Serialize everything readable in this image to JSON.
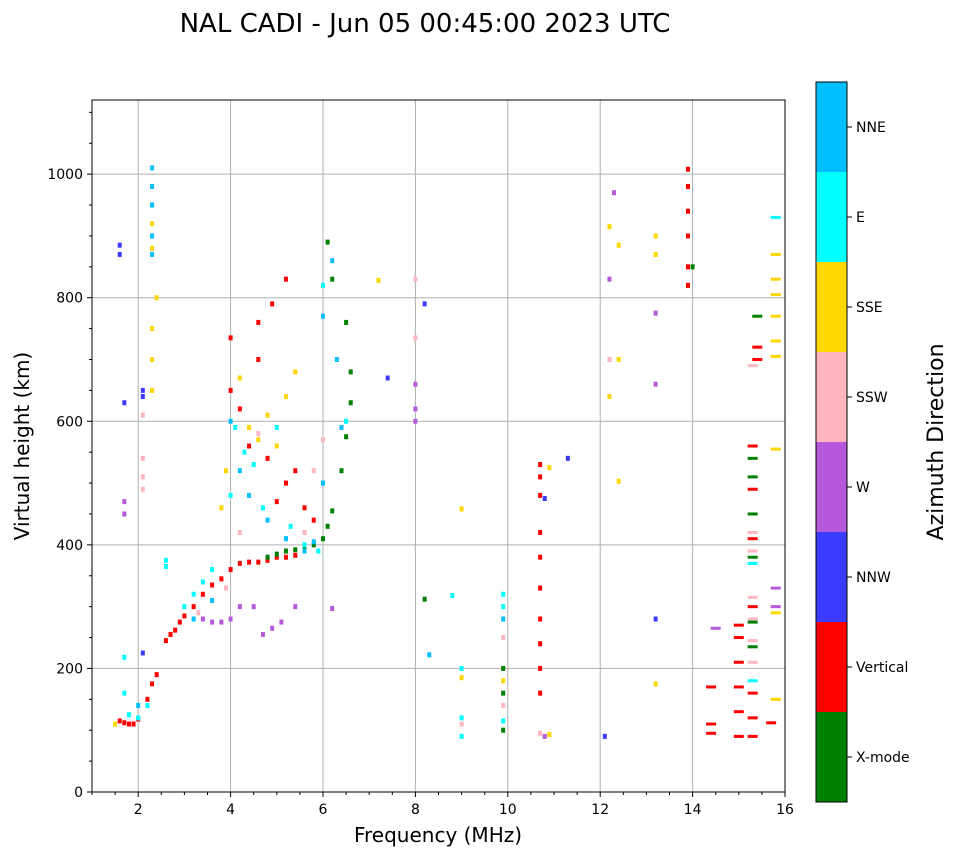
{
  "chart_data": {
    "type": "scatter",
    "title": "NAL CADI - Jun 05 00:45:00 2023 UTC",
    "xlabel": "Frequency (MHz)",
    "ylabel": "Virtual height (km)",
    "xlim": [
      1,
      16
    ],
    "ylim": [
      0,
      1120
    ],
    "xticks": [
      2,
      4,
      6,
      8,
      10,
      12,
      14,
      16
    ],
    "yticks": [
      0,
      200,
      400,
      600,
      800,
      1000
    ],
    "grid": true,
    "colorbar": {
      "title": "Azimuth Direction",
      "position": "right",
      "categories": [
        {
          "name": "X-mode",
          "color": "#008000"
        },
        {
          "name": "Vertical",
          "color": "#ff0000"
        },
        {
          "name": "NNW",
          "color": "#3b3bff"
        },
        {
          "name": "W",
          "color": "#b359d9"
        },
        {
          "name": "SSW",
          "color": "#ffb6c1"
        },
        {
          "name": "SSE",
          "color": "#ffd700"
        },
        {
          "name": "E",
          "color": "#00ffff"
        },
        {
          "name": "NNE",
          "color": "#00bfff"
        }
      ]
    },
    "series": [
      {
        "name": "Vertical",
        "points": [
          [
            1.6,
            115
          ],
          [
            1.7,
            112
          ],
          [
            1.8,
            110
          ],
          [
            1.9,
            110
          ],
          [
            2.0,
            118
          ],
          [
            2.2,
            150
          ],
          [
            2.3,
            175
          ],
          [
            2.4,
            190
          ],
          [
            2.6,
            245
          ],
          [
            2.7,
            255
          ],
          [
            2.8,
            262
          ],
          [
            2.9,
            275
          ],
          [
            3.0,
            285
          ],
          [
            3.2,
            300
          ],
          [
            3.4,
            320
          ],
          [
            3.6,
            335
          ],
          [
            3.8,
            345
          ],
          [
            4.0,
            360
          ],
          [
            4.2,
            370
          ],
          [
            4.4,
            372
          ],
          [
            4.6,
            372
          ],
          [
            4.8,
            375
          ],
          [
            5.0,
            380
          ],
          [
            5.2,
            380
          ],
          [
            5.4,
            383
          ],
          [
            4.0,
            650
          ],
          [
            4.0,
            735
          ],
          [
            4.2,
            620
          ],
          [
            4.4,
            560
          ],
          [
            4.6,
            700
          ],
          [
            4.8,
            540
          ],
          [
            5.0,
            470
          ],
          [
            5.2,
            500
          ],
          [
            5.4,
            520
          ],
          [
            5.6,
            460
          ],
          [
            5.8,
            440
          ],
          [
            4.6,
            760
          ],
          [
            4.9,
            790
          ],
          [
            5.2,
            830
          ],
          [
            10.7,
            160
          ],
          [
            10.7,
            200
          ],
          [
            10.7,
            240
          ],
          [
            10.7,
            280
          ],
          [
            10.7,
            330
          ],
          [
            10.7,
            380
          ],
          [
            10.7,
            420
          ],
          [
            10.7,
            480
          ],
          [
            10.7,
            510
          ],
          [
            10.7,
            530
          ],
          [
            13.9,
            820
          ],
          [
            13.9,
            850
          ],
          [
            13.9,
            900
          ],
          [
            13.9,
            940
          ],
          [
            13.9,
            980
          ],
          [
            13.9,
            1008
          ],
          [
            14.4,
            95
          ],
          [
            14.4,
            110
          ],
          [
            14.4,
            170
          ],
          [
            15.0,
            90
          ],
          [
            15.0,
            130
          ],
          [
            15.0,
            170
          ],
          [
            15.0,
            210
          ],
          [
            15.0,
            250
          ],
          [
            15.0,
            270
          ],
          [
            15.3,
            90
          ],
          [
            15.3,
            120
          ],
          [
            15.3,
            160
          ],
          [
            15.3,
            300
          ],
          [
            15.3,
            410
          ],
          [
            15.3,
            490
          ],
          [
            15.3,
            560
          ],
          [
            15.4,
            720
          ],
          [
            15.4,
            700
          ],
          [
            15.7,
            112
          ]
        ]
      },
      {
        "name": "X-mode",
        "points": [
          [
            4.8,
            380
          ],
          [
            5.0,
            385
          ],
          [
            5.2,
            390
          ],
          [
            5.4,
            392
          ],
          [
            5.6,
            395
          ],
          [
            5.8,
            400
          ],
          [
            6.0,
            410
          ],
          [
            6.1,
            430
          ],
          [
            6.2,
            455
          ],
          [
            6.4,
            520
          ],
          [
            6.5,
            575
          ],
          [
            6.6,
            630
          ],
          [
            6.6,
            680
          ],
          [
            6.5,
            760
          ],
          [
            6.2,
            830
          ],
          [
            6.1,
            890
          ],
          [
            9.9,
            100
          ],
          [
            9.9,
            160
          ],
          [
            9.9,
            200
          ],
          [
            14.0,
            850
          ],
          [
            15.3,
            235
          ],
          [
            15.3,
            275
          ],
          [
            15.3,
            380
          ],
          [
            15.3,
            450
          ],
          [
            15.3,
            510
          ],
          [
            15.3,
            540
          ],
          [
            15.4,
            770
          ],
          [
            8.2,
            312
          ]
        ]
      },
      {
        "name": "NNW",
        "points": [
          [
            1.6,
            885
          ],
          [
            1.6,
            870
          ],
          [
            1.7,
            630
          ],
          [
            2.1,
            650
          ],
          [
            2.1,
            640
          ],
          [
            8.2,
            790
          ],
          [
            11.3,
            540
          ],
          [
            12.1,
            90
          ],
          [
            10.8,
            475
          ],
          [
            7.4,
            670
          ],
          [
            13.2,
            280
          ],
          [
            2.1,
            225
          ]
        ]
      },
      {
        "name": "W",
        "points": [
          [
            3.4,
            280
          ],
          [
            3.6,
            275
          ],
          [
            3.8,
            275
          ],
          [
            4.0,
            280
          ],
          [
            4.2,
            300
          ],
          [
            4.5,
            300
          ],
          [
            4.7,
            255
          ],
          [
            4.9,
            265
          ],
          [
            5.1,
            275
          ],
          [
            5.4,
            300
          ],
          [
            6.2,
            297
          ],
          [
            8.0,
            620
          ],
          [
            8.0,
            600
          ],
          [
            8.0,
            660
          ],
          [
            12.3,
            970
          ],
          [
            13.2,
            660
          ],
          [
            13.2,
            775
          ],
          [
            12.2,
            830
          ],
          [
            15.8,
            330
          ],
          [
            15.8,
            300
          ],
          [
            14.5,
            265
          ],
          [
            10.8,
            90
          ],
          [
            1.7,
            470
          ],
          [
            1.7,
            450
          ]
        ]
      },
      {
        "name": "SSW",
        "points": [
          [
            2.1,
            540
          ],
          [
            2.1,
            510
          ],
          [
            2.1,
            490
          ],
          [
            2.1,
            610
          ],
          [
            3.3,
            290
          ],
          [
            3.9,
            330
          ],
          [
            4.2,
            420
          ],
          [
            4.6,
            580
          ],
          [
            5.6,
            420
          ],
          [
            6.0,
            570
          ],
          [
            5.8,
            520
          ],
          [
            8.0,
            830
          ],
          [
            8.0,
            735
          ],
          [
            12.2,
            700
          ],
          [
            15.3,
            420
          ],
          [
            15.3,
            390
          ],
          [
            15.3,
            315
          ],
          [
            15.3,
            280
          ],
          [
            15.3,
            245
          ],
          [
            15.3,
            210
          ],
          [
            15.3,
            690
          ],
          [
            9.0,
            110
          ],
          [
            9.9,
            140
          ],
          [
            9.9,
            250
          ],
          [
            10.7,
            95
          ]
        ]
      },
      {
        "name": "SSE",
        "points": [
          [
            1.5,
            110
          ],
          [
            2.3,
            650
          ],
          [
            2.3,
            700
          ],
          [
            2.3,
            750
          ],
          [
            2.4,
            800
          ],
          [
            2.3,
            880
          ],
          [
            2.3,
            920
          ],
          [
            4.2,
            670
          ],
          [
            4.4,
            590
          ],
          [
            4.6,
            570
          ],
          [
            4.8,
            610
          ],
          [
            5.0,
            560
          ],
          [
            5.4,
            680
          ],
          [
            5.2,
            640
          ],
          [
            3.8,
            460
          ],
          [
            3.9,
            520
          ],
          [
            9.0,
            458
          ],
          [
            9.0,
            185
          ],
          [
            10.9,
            525
          ],
          [
            12.2,
            915
          ],
          [
            12.2,
            640
          ],
          [
            12.4,
            885
          ],
          [
            12.4,
            700
          ],
          [
            12.4,
            503
          ],
          [
            13.2,
            900
          ],
          [
            13.2,
            870
          ],
          [
            13.2,
            175
          ],
          [
            15.8,
            870
          ],
          [
            15.8,
            830
          ],
          [
            15.8,
            805
          ],
          [
            15.8,
            770
          ],
          [
            15.8,
            730
          ],
          [
            15.8,
            705
          ],
          [
            15.8,
            555
          ],
          [
            15.8,
            290
          ],
          [
            15.8,
            150
          ],
          [
            7.2,
            828
          ],
          [
            10.9,
            93
          ],
          [
            9.9,
            180
          ]
        ]
      },
      {
        "name": "E",
        "points": [
          [
            1.7,
            160
          ],
          [
            1.8,
            125
          ],
          [
            2.0,
            120
          ],
          [
            2.2,
            140
          ],
          [
            2.6,
            375
          ],
          [
            3.0,
            300
          ],
          [
            3.2,
            320
          ],
          [
            3.4,
            340
          ],
          [
            3.6,
            360
          ],
          [
            4.0,
            480
          ],
          [
            4.1,
            590
          ],
          [
            4.3,
            550
          ],
          [
            4.5,
            530
          ],
          [
            4.7,
            460
          ],
          [
            5.0,
            590
          ],
          [
            5.3,
            430
          ],
          [
            5.6,
            400
          ],
          [
            5.9,
            390
          ],
          [
            6.0,
            820
          ],
          [
            6.5,
            600
          ],
          [
            8.8,
            318
          ],
          [
            9.0,
            200
          ],
          [
            9.0,
            120
          ],
          [
            9.0,
            90
          ],
          [
            9.9,
            320
          ],
          [
            9.9,
            300
          ],
          [
            9.9,
            115
          ],
          [
            15.3,
            370
          ],
          [
            15.3,
            180
          ],
          [
            15.8,
            930
          ],
          [
            1.7,
            218
          ],
          [
            2.6,
            365
          ]
        ]
      },
      {
        "name": "NNE",
        "points": [
          [
            2.3,
            1010
          ],
          [
            2.3,
            980
          ],
          [
            2.3,
            950
          ],
          [
            2.3,
            900
          ],
          [
            2.3,
            870
          ],
          [
            3.2,
            280
          ],
          [
            3.6,
            310
          ],
          [
            4.0,
            600
          ],
          [
            4.2,
            520
          ],
          [
            4.4,
            480
          ],
          [
            4.8,
            440
          ],
          [
            5.2,
            410
          ],
          [
            5.6,
            390
          ],
          [
            5.8,
            405
          ],
          [
            6.0,
            770
          ],
          [
            6.2,
            860
          ],
          [
            6.3,
            700
          ],
          [
            6.4,
            590
          ],
          [
            6.0,
            500
          ],
          [
            8.3,
            222
          ],
          [
            9.9,
            280
          ],
          [
            2.0,
            140
          ]
        ]
      }
    ]
  }
}
